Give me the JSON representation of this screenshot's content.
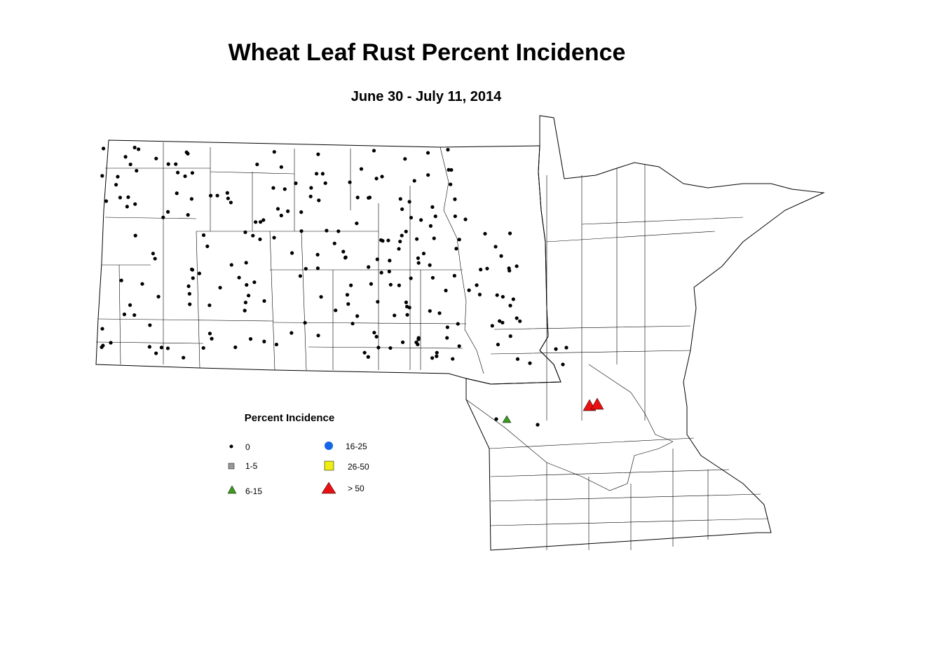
{
  "title": "Wheat Leaf Rust Percent Incidence",
  "subtitle": "June 30 - July 11, 2014",
  "legend": {
    "title": "Percent Incidence",
    "items": [
      "0",
      "1-5",
      "6-15",
      "16-25",
      "26-50",
      "> 50"
    ]
  }
}
